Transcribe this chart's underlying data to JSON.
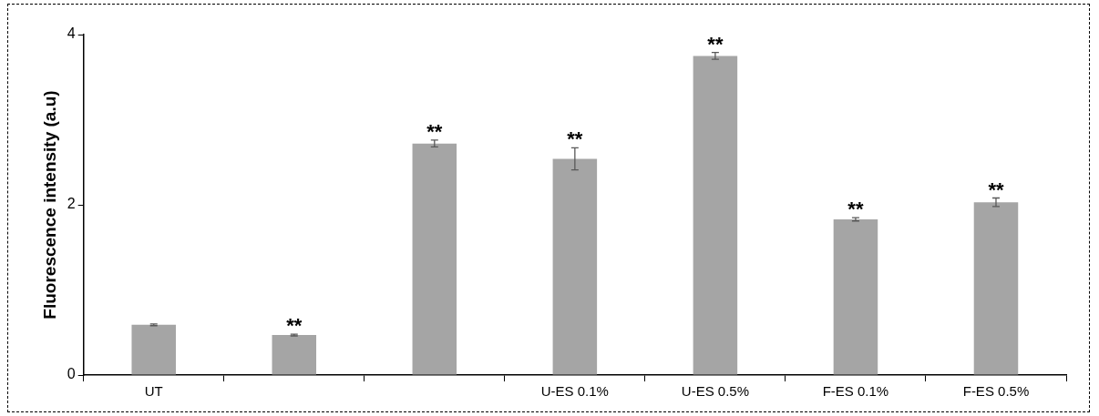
{
  "chart_data": {
    "type": "bar",
    "ylabel": "Fluorescence intensity (a.u)",
    "categories": [
      "UT",
      null,
      null,
      "U-ES 0.1%",
      "U-ES 0.5%",
      "F-ES 0.1%",
      "F-ES 0.5%"
    ],
    "values": [
      0.59,
      0.47,
      2.72,
      2.54,
      3.75,
      1.83,
      2.03
    ],
    "errors": [
      0.01,
      0.01,
      0.04,
      0.13,
      0.04,
      0.02,
      0.05
    ],
    "value_labels": [
      null,
      "**",
      "**",
      "**",
      "**",
      "**",
      "**"
    ],
    "color": "#a5a5a5",
    "ylim": [
      0,
      4
    ],
    "yticks": [
      0,
      2,
      4
    ],
    "grid": false,
    "legend": false
  }
}
